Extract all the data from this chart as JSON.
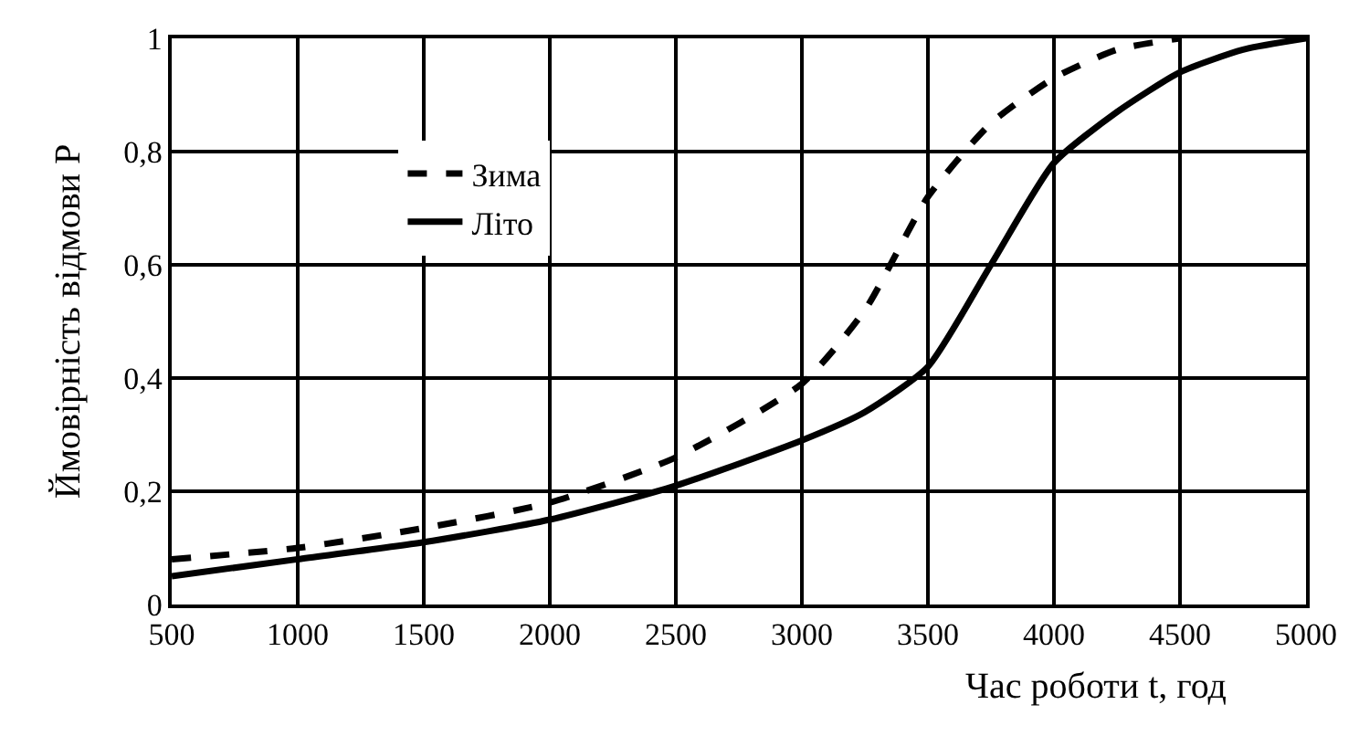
{
  "chart_data": {
    "type": "line",
    "xlabel": "Час роботи t, год",
    "ylabel": "Ймовірність відмови P",
    "x": [
      500,
      1000,
      1500,
      2000,
      2500,
      3000,
      3250,
      3500,
      3750,
      4000,
      4250,
      4500,
      4750,
      5000
    ],
    "series": [
      {
        "name": "Зима",
        "color": "#000000",
        "line_style": "dashed",
        "x": [
          500,
          1000,
          1500,
          2000,
          2500,
          3000,
          3250,
          3500,
          3750,
          4000,
          4250,
          4500
        ],
        "values": [
          0.08,
          0.1,
          0.135,
          0.18,
          0.26,
          0.39,
          0.52,
          0.72,
          0.85,
          0.93,
          0.98,
          1.0
        ]
      },
      {
        "name": "Літо",
        "color": "#000000",
        "line_style": "solid",
        "values": [
          0.05,
          0.08,
          0.11,
          0.15,
          0.21,
          0.29,
          0.34,
          0.42,
          0.6,
          0.78,
          0.87,
          0.94,
          0.98,
          1.0
        ]
      }
    ],
    "xlim": [
      500,
      5000
    ],
    "xticks": [
      500,
      1000,
      1500,
      2000,
      2500,
      3000,
      3500,
      4000,
      4500,
      5000
    ],
    "ylim": [
      0,
      1
    ],
    "yticks": [
      0,
      {
        "value": 0.2,
        "label": "0,2"
      },
      {
        "value": 0.4,
        "label": "0,4"
      },
      {
        "value": 0.6,
        "label": "0,6"
      },
      {
        "value": 0.8,
        "label": "0,8"
      },
      1
    ],
    "grid": true,
    "legend": "top left",
    "marker": "none"
  }
}
